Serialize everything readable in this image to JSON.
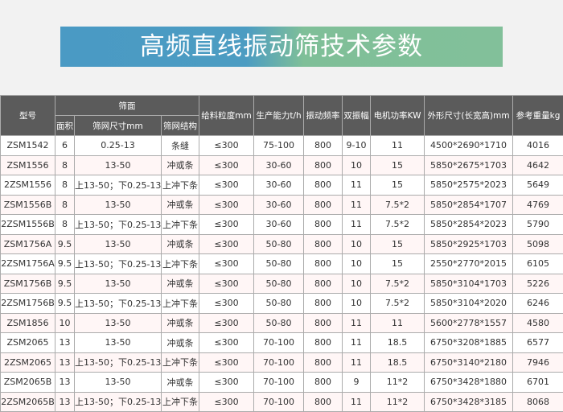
{
  "title": "高频直线振动筛技术参数",
  "colors": {
    "header_bg": "#5b5b5b",
    "alt_row": "#fff6f6",
    "banner_start": "#4a9ac4",
    "banner_end": "#82c09a"
  },
  "table": {
    "headers": {
      "model": "型号",
      "screen_group": "筛面",
      "area": "面积",
      "mesh_size": "筛网尺寸mm",
      "mesh_structure": "筛网结构",
      "feed_size": "给料粒度mm",
      "capacity": "生产能力t/h",
      "frequency": "振动频率",
      "amplitude": "双振幅",
      "motor_power": "电机功率KW",
      "dimensions": "外形尺寸(长宽高)mm",
      "weight": "参考重量kg"
    },
    "rows": [
      [
        "ZSM1542",
        "6",
        "0.25-13",
        "条缝",
        "≤300",
        "75-100",
        "800",
        "9-10",
        "11",
        "4500*2690*1710",
        "4016"
      ],
      [
        "ZSM1556",
        "8",
        "13-50",
        "冲或条",
        "≤300",
        "30-60",
        "800",
        "10",
        "15",
        "5850*2675*1703",
        "4642"
      ],
      [
        "2ZSM1556",
        "8",
        "上13-50；下0.25-13",
        "上冲下条",
        "≤300",
        "30-60",
        "800",
        "11",
        "15",
        "5850*2575*2023",
        "5649"
      ],
      [
        "ZSM1556B",
        "8",
        "13-50",
        "冲或条",
        "≤300",
        "30-60",
        "800",
        "11",
        "7.5*2",
        "5850*2854*1707",
        "4769"
      ],
      [
        "2ZSM1556B",
        "8",
        "上13-50；下0.25-13",
        "上冲下条",
        "≤300",
        "30-60",
        "800",
        "11",
        "7.5*2",
        "5850*2854*2023",
        "5790"
      ],
      [
        "ZSM1756A",
        "9.5",
        "13-50",
        "冲或条",
        "≤300",
        "50-80",
        "800",
        "10",
        "15",
        "5850*2925*1703",
        "5098"
      ],
      [
        "2ZSM1756A",
        "9.5",
        "上13-50；下0.25-13",
        "上冲下条",
        "≤300",
        "50-80",
        "800",
        "10",
        "15",
        "2550*2770*2015",
        "6105"
      ],
      [
        "ZSM1756B",
        "9.5",
        "13-50",
        "冲或条",
        "≤300",
        "50-80",
        "800",
        "10",
        "7.5*2",
        "5850*3104*1703",
        "5226"
      ],
      [
        "2ZSM1756B",
        "9.5",
        "上13-50；下0.25-13",
        "上冲下条",
        "≤300",
        "50-80",
        "800",
        "10",
        "7.5*2",
        "5850*3104*2020",
        "6246"
      ],
      [
        "ZSM1856",
        "10",
        "13-50",
        "冲或条",
        "≤300",
        "50-80",
        "800",
        "11",
        "11",
        "5600*2778*1557",
        "4580"
      ],
      [
        "ZSM2065",
        "13",
        "13-50",
        "冲或条",
        "≤300",
        "70-100",
        "800",
        "11",
        "18.5",
        "6750*3208*1885",
        "6577"
      ],
      [
        "2ZSM2065",
        "13",
        "上13-50；下0.25-13",
        "上冲下条",
        "≤300",
        "70-100",
        "800",
        "11",
        "18.5",
        "6750*3140*2180",
        "7946"
      ],
      [
        "ZSM2065B",
        "13",
        "13-50",
        "冲或条",
        "≤300",
        "70-100",
        "800",
        "9",
        "11*2",
        "6750*3428*1880",
        "6701"
      ],
      [
        "2ZSM2065B",
        "13",
        "上13-50；下0.25-13",
        "上冲下条",
        "≤300",
        "70-100",
        "800",
        "11",
        "11*2",
        "6750*3428*3185",
        "8068"
      ]
    ]
  }
}
